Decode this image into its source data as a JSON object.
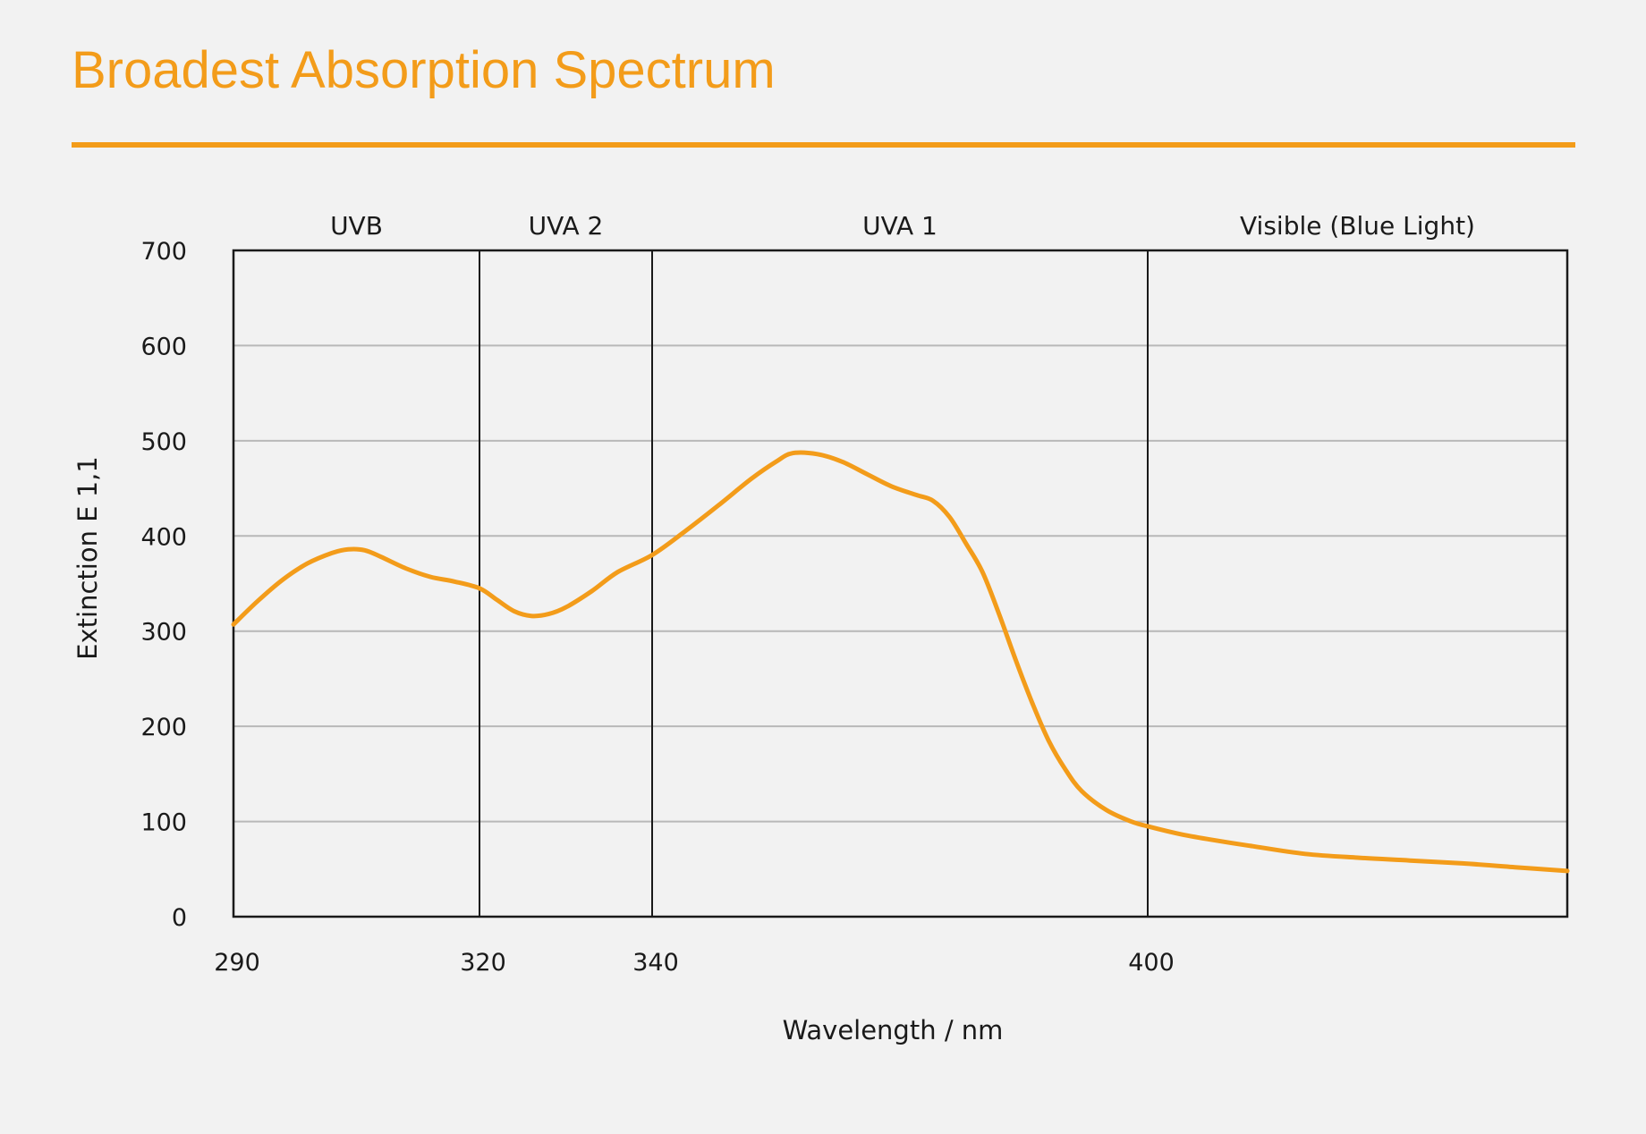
{
  "colors": {
    "accent": "#f39c1a",
    "text": "#1a1a1a",
    "grid": "#b8b8b8",
    "background": "#f2f2f2"
  },
  "chart_data": {
    "type": "line",
    "title": "Broadest Absorption Spectrum",
    "xlabel": "Wavelength / nm",
    "ylabel": "Extinction E 1,1",
    "xlim": [
      290,
      440
    ],
    "ylim": [
      0,
      700
    ],
    "x_ticks": [
      290,
      320,
      340,
      400
    ],
    "y_ticks": [
      0,
      100,
      200,
      300,
      400,
      500,
      600,
      700
    ],
    "grid": true,
    "regions": [
      {
        "label": "UVB",
        "start": 290,
        "end": 320
      },
      {
        "label": "UVA 2",
        "start": 320,
        "end": 340
      },
      {
        "label": "UVA 1",
        "start": 340,
        "end": 400
      },
      {
        "label": "Visible (Blue Light)",
        "start": 400,
        "end": 440
      }
    ],
    "series": [
      {
        "color": "#f39c1a",
        "x": [
          290,
          293,
          296,
          299,
          302,
          304,
          306,
          308,
          311,
          314,
          317,
          320,
          322,
          324,
          326,
          328,
          330,
          333,
          336,
          340,
          344,
          348,
          352,
          355,
          357,
          360,
          363,
          366,
          369,
          372,
          374,
          376,
          378,
          380,
          382,
          384,
          386,
          388,
          390,
          392,
          395,
          398,
          400,
          403,
          406,
          410,
          415,
          420,
          425,
          430,
          435,
          440
        ],
        "y": [
          307,
          332,
          354,
          371,
          382,
          386,
          385,
          378,
          366,
          357,
          352,
          345,
          333,
          321,
          316,
          318,
          325,
          342,
          362,
          380,
          405,
          432,
          460,
          478,
          487,
          486,
          478,
          465,
          452,
          443,
          437,
          420,
          392,
          362,
          318,
          270,
          225,
          185,
          155,
          132,
          112,
          100,
          95,
          87,
          81,
          74,
          66,
          62,
          59,
          56,
          52,
          48
        ]
      }
    ]
  }
}
